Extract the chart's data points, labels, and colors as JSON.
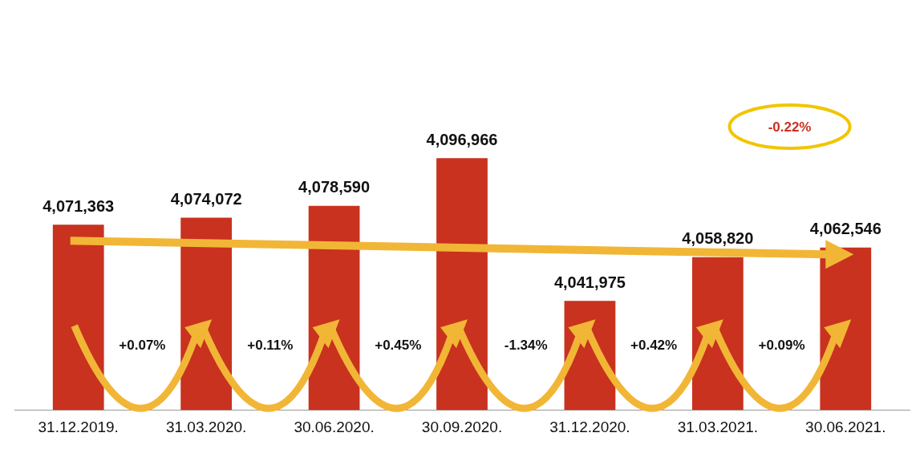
{
  "chart_data": {
    "type": "bar",
    "categories": [
      "31.12.2019.",
      "31.03.2020.",
      "30.06.2020.",
      "30.09.2020.",
      "31.12.2020.",
      "31.03.2021.",
      "30.06.2021."
    ],
    "values": [
      4071363,
      4074072,
      4078590,
      4096966,
      4041975,
      4058820,
      4062546
    ],
    "color": "#c8321f",
    "value_labels": [
      "4,071,363",
      "4,074,072",
      "4,078,590",
      "4,096,966",
      "4,041,975",
      "4,058,820",
      "4,062,546"
    ],
    "grid": false,
    "annotations": [
      "+0.07%",
      "+0.11%",
      "+0.45%",
      "-1.34%",
      "+0.42%",
      "+0.09%",
      "-0.22%"
    ]
  }
}
